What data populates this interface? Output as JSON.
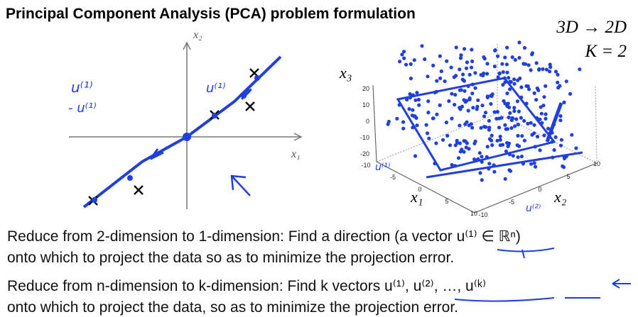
{
  "title": "Principal Component Analysis (PCA) problem formulation",
  "corner": [
    "3D → 2D",
    "K = 2"
  ],
  "plot2d": {
    "x_label": "x₁",
    "y_label": "x₂",
    "annotations": [
      "u⁽¹⁾",
      "- u⁽¹⁾",
      "u⁽¹⁾"
    ]
  },
  "plot3d": {
    "z_label": "x₃",
    "x_label": "x₁",
    "y_label": "x₂",
    "z_ticks": [
      20,
      10,
      0,
      -10,
      -20
    ],
    "x_ticks": [
      -10,
      -5,
      0,
      5,
      10
    ],
    "y_ticks": [
      -10,
      -5,
      0,
      5,
      10
    ],
    "annotations": [
      "u⁽¹⁾",
      "u⁽²⁾"
    ]
  },
  "paragraphs": [
    [
      "Reduce from 2-dimension to 1-dimension: Find a direction (a vector u⁽¹⁾ ∈ ℝⁿ)",
      "onto which to project the data so as to minimize the projection error."
    ],
    [
      "Reduce from n-dimension to k-dimension: Find k vectors u⁽¹⁾, u⁽²⁾, …, u⁽ᵏ⁾",
      "onto which to project the data, so as to minimize the projection error."
    ]
  ]
}
